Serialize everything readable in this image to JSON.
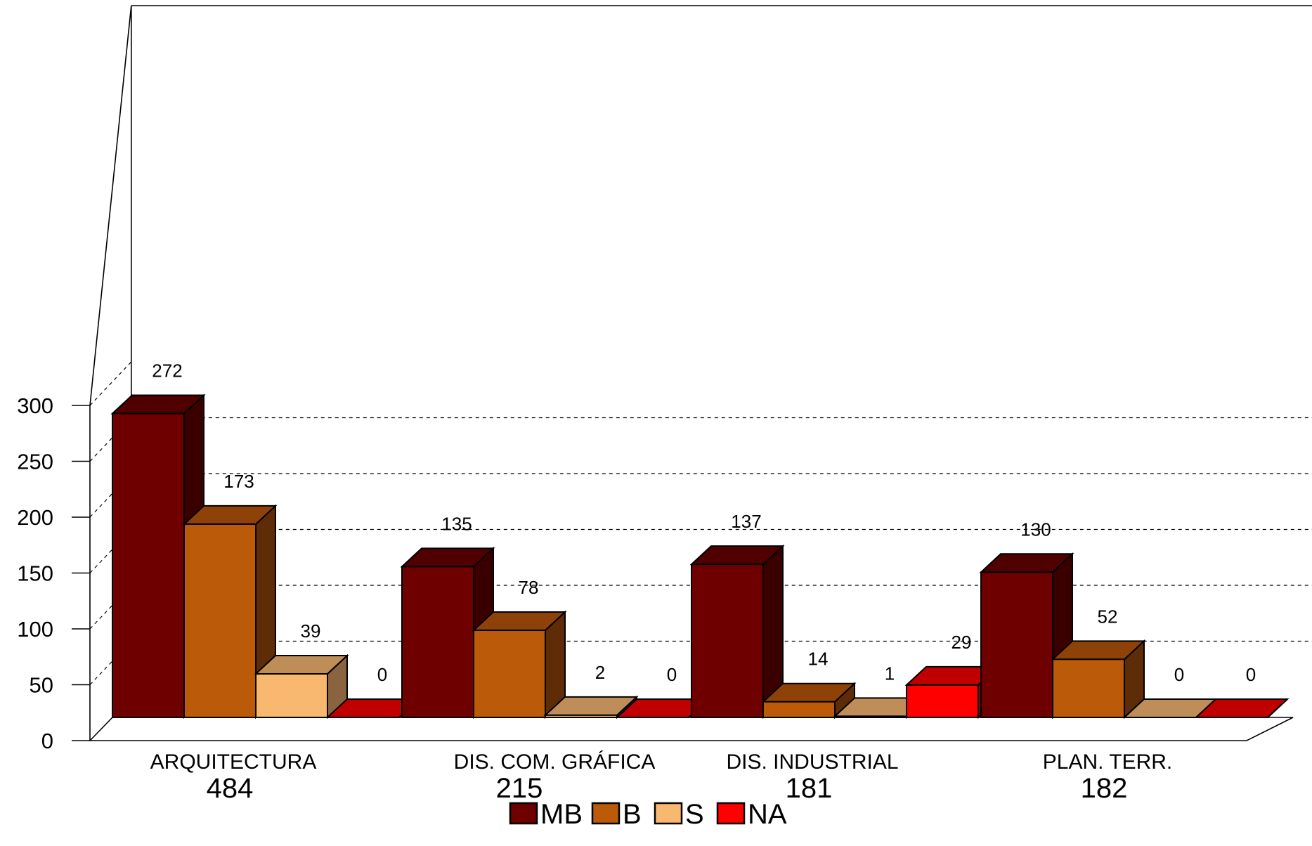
{
  "chart_data": {
    "type": "bar",
    "title": "",
    "xlabel": "",
    "ylabel": "",
    "ylim": [
      0,
      300
    ],
    "yticks": [
      0,
      50,
      100,
      150,
      200,
      250,
      300
    ],
    "grid": true,
    "legend_position": "bottom",
    "categories": [
      "ARQUITECTURA",
      "DIS. COM. GRÁFICA",
      "DIS. INDUSTRIAL",
      "PLAN. TERR."
    ],
    "category_totals": [
      "484",
      "215",
      "181",
      "182"
    ],
    "series": [
      {
        "name": "MB",
        "values": [
          272,
          135,
          137,
          130
        ]
      },
      {
        "name": "B",
        "values": [
          173,
          78,
          14,
          52
        ]
      },
      {
        "name": "S",
        "values": [
          39,
          2,
          1,
          0
        ]
      },
      {
        "name": "NA",
        "values": [
          0,
          0,
          29,
          0
        ]
      }
    ],
    "colors": {
      "MB": {
        "front": "#6e0000",
        "top": "#500000",
        "side": "#3a0000"
      },
      "B": {
        "front": "#bb5a08",
        "top": "#8e4208",
        "side": "#5e2c06"
      },
      "S": {
        "front": "#f8b870",
        "top": "#bf8e58",
        "side": "#8a6440"
      },
      "NA": {
        "front": "#ff0000",
        "top": "#c00000",
        "side": "#900000"
      }
    }
  }
}
